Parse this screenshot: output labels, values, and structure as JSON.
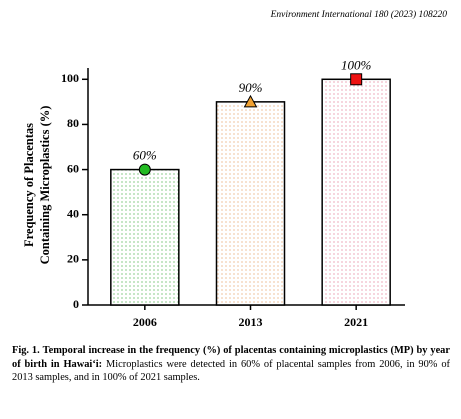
{
  "header": "Environment International 180 (2023) 108220",
  "chart_data": {
    "type": "bar",
    "ylabel": [
      "Frequency of Placentas",
      "Containing Microplastics (%)"
    ],
    "categories": [
      "2006",
      "2013",
      "2021"
    ],
    "values": [
      60,
      90,
      100
    ],
    "value_labels": [
      "60%",
      "90%",
      "100%"
    ],
    "colors": [
      "#3aa83a",
      "#e49a5a",
      "#e0708a"
    ],
    "markers": [
      "circle",
      "triangle",
      "square"
    ],
    "marker_colors": [
      "#22bb22",
      "#f0a030",
      "#ee1111"
    ],
    "ylim": [
      0,
      105
    ],
    "yticks": [
      0,
      20,
      40,
      60,
      80,
      100
    ]
  },
  "caption": {
    "label": "Fig. 1.",
    "title": "Temporal increase in the frequency (%) of placentas containing microplastics (MP) by year of birth in Hawaiʻi:",
    "text": "Microplastics were detected in 60% of placental samples from 2006, in 90% of 2013 samples, and in 100% of 2021 samples."
  }
}
